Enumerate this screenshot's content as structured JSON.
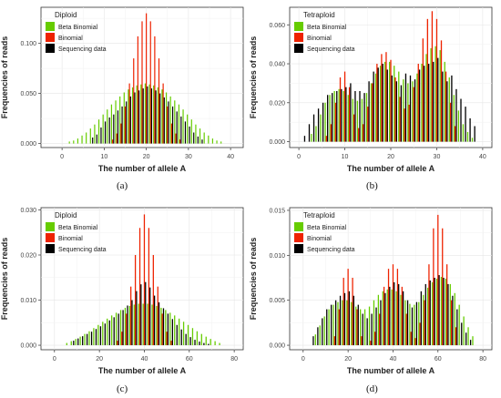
{
  "figure": {
    "colors": {
      "beta": "#66cc00",
      "binomial": "#ee2200",
      "seq": "#000000",
      "grid": "#e6e6e6",
      "text": "#222222"
    },
    "legend_labels": [
      "Beta Binomial",
      "Binomial",
      "Sequencing data"
    ],
    "ylabel": "Frequencies of reads",
    "xlabel": "The number of allele A",
    "captions": [
      "(a)",
      "(b)",
      "(c)",
      "(d)"
    ]
  },
  "chart_data": [
    {
      "type": "bar",
      "legend_title": "Diploid",
      "xlim": [
        -5,
        43
      ],
      "ylim": [
        -0.004,
        0.136
      ],
      "xticks": [
        0,
        10,
        20,
        30,
        40
      ],
      "xtick_labels": [
        "0",
        "10",
        "20",
        "30",
        "40"
      ],
      "yticks": [
        0,
        0.05,
        0.1
      ],
      "ytick_labels": [
        "0.000",
        "0.050",
        "0.100"
      ],
      "series": [
        {
          "name": "Beta Binomial",
          "x": [
            2,
            3,
            4,
            5,
            6,
            7,
            8,
            9,
            10,
            11,
            12,
            13,
            14,
            15,
            16,
            17,
            18,
            19,
            20,
            21,
            22,
            23,
            24,
            25,
            26,
            27,
            28,
            29,
            30,
            31,
            32,
            33,
            34,
            35,
            36,
            37,
            38
          ],
          "values": [
            0.002,
            0.003,
            0.005,
            0.008,
            0.011,
            0.015,
            0.019,
            0.024,
            0.029,
            0.034,
            0.039,
            0.043,
            0.047,
            0.051,
            0.054,
            0.056,
            0.058,
            0.059,
            0.06,
            0.059,
            0.058,
            0.056,
            0.054,
            0.051,
            0.047,
            0.043,
            0.039,
            0.034,
            0.029,
            0.024,
            0.019,
            0.015,
            0.011,
            0.008,
            0.005,
            0.003,
            0.002
          ]
        },
        {
          "name": "Binomial",
          "x": [
            12,
            13,
            14,
            15,
            16,
            17,
            18,
            19,
            20,
            21,
            22,
            23,
            24,
            25,
            26,
            27,
            28
          ],
          "values": [
            0.004,
            0.01,
            0.02,
            0.037,
            0.06,
            0.085,
            0.107,
            0.122,
            0.13,
            0.122,
            0.107,
            0.085,
            0.06,
            0.037,
            0.02,
            0.01,
            0.004
          ]
        },
        {
          "name": "Sequencing data",
          "x": [
            7,
            8,
            9,
            10,
            11,
            12,
            13,
            14,
            15,
            16,
            17,
            18,
            19,
            20,
            21,
            22,
            23,
            24,
            25,
            26,
            27,
            28,
            29,
            30,
            31,
            32,
            33
          ],
          "values": [
            0.006,
            0.009,
            0.016,
            0.022,
            0.026,
            0.029,
            0.033,
            0.037,
            0.042,
            0.047,
            0.051,
            0.053,
            0.055,
            0.057,
            0.055,
            0.053,
            0.05,
            0.046,
            0.042,
            0.037,
            0.032,
            0.027,
            0.022,
            0.017,
            0.011,
            0.007,
            0.004
          ]
        }
      ]
    },
    {
      "type": "bar",
      "legend_title": "Tetraploid",
      "xlim": [
        -2,
        42
      ],
      "ylim": [
        -0.003,
        0.069
      ],
      "xticks": [
        0,
        10,
        20,
        30,
        40
      ],
      "xtick_labels": [
        "0",
        "10",
        "20",
        "30",
        "40"
      ],
      "yticks": [
        0,
        0.02,
        0.04,
        0.06
      ],
      "ytick_labels": [
        "0.000",
        "0.020",
        "0.040",
        "0.060"
      ],
      "series": [
        {
          "name": "Beta Binomial",
          "x": [
            3,
            4,
            5,
            6,
            7,
            8,
            9,
            10,
            11,
            12,
            13,
            14,
            15,
            16,
            17,
            18,
            19,
            20,
            21,
            22,
            23,
            24,
            25,
            26,
            27,
            28,
            29,
            30,
            31,
            32,
            33,
            34,
            35,
            36,
            37,
            38
          ],
          "values": [
            0.004,
            0.008,
            0.014,
            0.02,
            0.024,
            0.026,
            0.027,
            0.026,
            0.024,
            0.022,
            0.021,
            0.022,
            0.025,
            0.03,
            0.035,
            0.039,
            0.041,
            0.041,
            0.039,
            0.036,
            0.032,
            0.03,
            0.031,
            0.035,
            0.04,
            0.045,
            0.048,
            0.049,
            0.047,
            0.041,
            0.033,
            0.024,
            0.016,
            0.009,
            0.005,
            0.002
          ]
        },
        {
          "name": "Binomial",
          "x": [
            6,
            7,
            8,
            9,
            10,
            11,
            12,
            13,
            14,
            15,
            16,
            17,
            18,
            19,
            20,
            21,
            22,
            23,
            24,
            25,
            26,
            27,
            28,
            29,
            30,
            31,
            32,
            33,
            34
          ],
          "values": [
            0.003,
            0.009,
            0.02,
            0.033,
            0.036,
            0.028,
            0.014,
            0.007,
            0.009,
            0.018,
            0.03,
            0.04,
            0.045,
            0.046,
            0.042,
            0.033,
            0.023,
            0.017,
            0.019,
            0.028,
            0.04,
            0.053,
            0.063,
            0.067,
            0.063,
            0.052,
            0.036,
            0.02,
            0.008
          ]
        },
        {
          "name": "Sequencing data",
          "x": [
            1,
            2,
            3,
            4,
            5,
            6,
            7,
            8,
            9,
            10,
            11,
            12,
            13,
            14,
            15,
            16,
            17,
            18,
            19,
            20,
            21,
            22,
            23,
            24,
            25,
            26,
            27,
            28,
            29,
            30,
            31,
            32,
            33,
            34,
            35,
            36,
            37,
            38
          ],
          "values": [
            0.003,
            0.009,
            0.014,
            0.017,
            0.02,
            0.024,
            0.025,
            0.026,
            0.027,
            0.028,
            0.03,
            0.026,
            0.026,
            0.025,
            0.031,
            0.036,
            0.038,
            0.04,
            0.037,
            0.034,
            0.031,
            0.029,
            0.035,
            0.034,
            0.032,
            0.037,
            0.039,
            0.04,
            0.041,
            0.043,
            0.036,
            0.031,
            0.034,
            0.027,
            0.022,
            0.018,
            0.012,
            0.008
          ]
        }
      ]
    },
    {
      "type": "bar",
      "legend_title": "Diploid",
      "xlim": [
        -6,
        84
      ],
      "ylim": [
        -0.001,
        0.0305
      ],
      "xticks": [
        0,
        20,
        40,
        60,
        80
      ],
      "xtick_labels": [
        "0",
        "20",
        "40",
        "60",
        "80"
      ],
      "yticks": [
        0,
        0.01,
        0.02,
        0.03
      ],
      "ytick_labels": [
        "0.000",
        "0.010",
        "0.020",
        "0.030"
      ],
      "series": [
        {
          "name": "Beta Binomial",
          "x": [
            6,
            8,
            10,
            12,
            14,
            16,
            18,
            20,
            22,
            24,
            26,
            28,
            30,
            32,
            34,
            36,
            38,
            40,
            42,
            44,
            46,
            48,
            50,
            52,
            54,
            56,
            58,
            60,
            62,
            64,
            66,
            68,
            70,
            72,
            74
          ],
          "values": [
            0.0005,
            0.0009,
            0.0014,
            0.0019,
            0.0025,
            0.0031,
            0.0038,
            0.0045,
            0.0052,
            0.0059,
            0.0066,
            0.0072,
            0.0078,
            0.0083,
            0.0087,
            0.009,
            0.0092,
            0.0092,
            0.0092,
            0.009,
            0.0087,
            0.0083,
            0.0078,
            0.0072,
            0.0066,
            0.0059,
            0.0052,
            0.0045,
            0.0038,
            0.0031,
            0.0025,
            0.0019,
            0.0014,
            0.0009,
            0.0005
          ]
        },
        {
          "name": "Binomial",
          "x": [
            28,
            30,
            32,
            34,
            36,
            38,
            40,
            42,
            44,
            46,
            48,
            50,
            52
          ],
          "values": [
            0.001,
            0.003,
            0.007,
            0.013,
            0.02,
            0.026,
            0.029,
            0.026,
            0.02,
            0.013,
            0.007,
            0.003,
            0.001
          ]
        },
        {
          "name": "Sequencing data",
          "x": [
            8,
            10,
            12,
            14,
            16,
            18,
            20,
            22,
            24,
            26,
            28,
            30,
            32,
            34,
            36,
            38,
            40,
            42,
            44,
            46,
            48,
            50,
            52,
            54,
            56,
            58,
            60,
            62,
            64,
            66,
            68
          ],
          "values": [
            0.001,
            0.0015,
            0.002,
            0.0025,
            0.003,
            0.0036,
            0.0042,
            0.0048,
            0.0055,
            0.0062,
            0.007,
            0.0078,
            0.0088,
            0.01,
            0.012,
            0.0135,
            0.014,
            0.0128,
            0.011,
            0.0095,
            0.0082,
            0.007,
            0.0058,
            0.0045,
            0.0035,
            0.0025,
            0.0018,
            0.0012,
            0.0008,
            0.0005,
            0.0003
          ]
        }
      ]
    },
    {
      "type": "bar",
      "legend_title": "Tetraploid",
      "xlim": [
        -6,
        84
      ],
      "ylim": [
        -0.0005,
        0.0153
      ],
      "xticks": [
        0,
        20,
        40,
        60,
        80
      ],
      "xtick_labels": [
        "0",
        "20",
        "40",
        "60",
        "80"
      ],
      "yticks": [
        0,
        0.005,
        0.01,
        0.015
      ],
      "ytick_labels": [
        "0.000",
        "0.005",
        "0.010",
        "0.015"
      ],
      "series": [
        {
          "name": "Beta Binomial",
          "x": [
            6,
            8,
            10,
            12,
            14,
            16,
            18,
            20,
            22,
            24,
            26,
            28,
            30,
            32,
            34,
            36,
            38,
            40,
            42,
            44,
            46,
            48,
            50,
            52,
            54,
            56,
            58,
            60,
            62,
            64,
            66,
            68,
            70,
            72,
            74,
            76
          ],
          "values": [
            0.0012,
            0.0022,
            0.0032,
            0.004,
            0.0045,
            0.0048,
            0.005,
            0.005,
            0.0048,
            0.0043,
            0.004,
            0.004,
            0.0043,
            0.005,
            0.0056,
            0.006,
            0.0062,
            0.0062,
            0.006,
            0.0056,
            0.005,
            0.0046,
            0.0045,
            0.0048,
            0.0056,
            0.0064,
            0.007,
            0.0074,
            0.0076,
            0.0074,
            0.0068,
            0.0058,
            0.0045,
            0.0032,
            0.002,
            0.001
          ]
        },
        {
          "name": "Binomial",
          "x": [
            14,
            16,
            18,
            20,
            22,
            24,
            26,
            30,
            32,
            34,
            36,
            38,
            40,
            42,
            44,
            46,
            48,
            50,
            52,
            54,
            56,
            58,
            60,
            62,
            64,
            66,
            68
          ],
          "values": [
            0.001,
            0.004,
            0.0075,
            0.0085,
            0.0075,
            0.004,
            0.001,
            0.0005,
            0.0015,
            0.0035,
            0.0065,
            0.0085,
            0.009,
            0.0085,
            0.0065,
            0.0035,
            0.0015,
            0.0008,
            0.0025,
            0.005,
            0.009,
            0.013,
            0.0145,
            0.013,
            0.009,
            0.005,
            0.002
          ]
        },
        {
          "name": "Sequencing data",
          "x": [
            4,
            6,
            8,
            10,
            12,
            14,
            16,
            18,
            20,
            22,
            24,
            26,
            28,
            30,
            32,
            34,
            36,
            38,
            40,
            42,
            44,
            46,
            48,
            50,
            52,
            54,
            56,
            58,
            60,
            62,
            64,
            66,
            68,
            70,
            72,
            74
          ],
          "values": [
            0.001,
            0.002,
            0.003,
            0.004,
            0.0045,
            0.005,
            0.0055,
            0.0058,
            0.006,
            0.0055,
            0.0045,
            0.0035,
            0.003,
            0.0035,
            0.0042,
            0.005,
            0.0058,
            0.0065,
            0.007,
            0.0068,
            0.006,
            0.005,
            0.0042,
            0.0048,
            0.006,
            0.0068,
            0.0072,
            0.0075,
            0.0078,
            0.0075,
            0.0068,
            0.0055,
            0.004,
            0.0025,
            0.0014,
            0.0006
          ]
        }
      ]
    }
  ]
}
